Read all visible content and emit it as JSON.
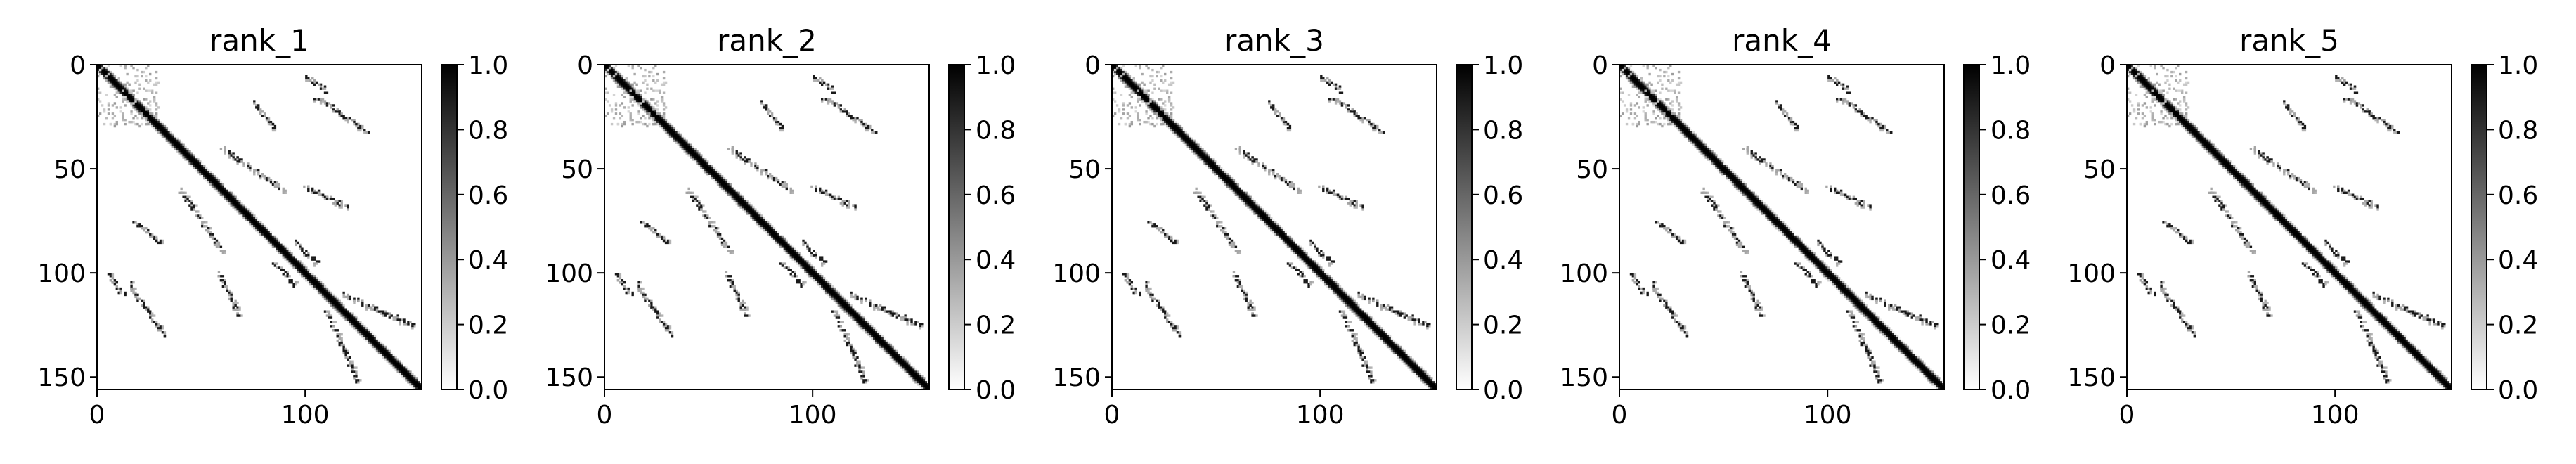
{
  "figure": {
    "background": "#ffffff",
    "cmap": "Greys (white to black)",
    "panel_count": 5
  },
  "chart_data": [
    {
      "type": "heatmap",
      "title": "rank_1",
      "xlabel": "",
      "ylabel": "",
      "matrix_size": 156,
      "xlim": [
        0,
        155
      ],
      "ylim": [
        155,
        0
      ],
      "x_ticks": [
        0,
        100
      ],
      "y_ticks": [
        0,
        50,
        100,
        150
      ],
      "colorbar": {
        "min": 0.0,
        "max": 1.0,
        "ticks": [
          "0.0",
          "0.2",
          "0.4",
          "0.6",
          "0.8",
          "1.0"
        ]
      },
      "features": {
        "diagonal_band_width": 3,
        "diagonal_range": [
          0,
          155
        ],
        "contact_arcs": [
          {
            "i_start": 18,
            "i_end": 30,
            "j_start": 75,
            "j_end": 85
          },
          {
            "i_start": 15,
            "i_end": 32,
            "j_start": 105,
            "j_end": 130
          },
          {
            "i_start": 40,
            "i_end": 60,
            "j_start": 60,
            "j_end": 90
          },
          {
            "i_start": 58,
            "i_end": 68,
            "j_start": 100,
            "j_end": 120
          },
          {
            "i_start": 5,
            "i_end": 12,
            "j_start": 100,
            "j_end": 110
          },
          {
            "i_start": 110,
            "i_end": 125,
            "j_start": 118,
            "j_end": 152
          },
          {
            "i_start": 85,
            "i_end": 95,
            "j_start": 95,
            "j_end": 105
          }
        ]
      }
    },
    {
      "type": "heatmap",
      "title": "rank_2",
      "xlabel": "",
      "ylabel": "",
      "matrix_size": 156,
      "xlim": [
        0,
        155
      ],
      "ylim": [
        155,
        0
      ],
      "x_ticks": [
        0,
        100
      ],
      "y_ticks": [
        0,
        50,
        100,
        150
      ],
      "colorbar": {
        "min": 0.0,
        "max": 1.0,
        "ticks": [
          "0.0",
          "0.2",
          "0.4",
          "0.6",
          "0.8",
          "1.0"
        ]
      },
      "features": {
        "diagonal_band_width": 3,
        "diagonal_range": [
          0,
          155
        ],
        "contact_arcs": [
          {
            "i_start": 18,
            "i_end": 30,
            "j_start": 75,
            "j_end": 85
          },
          {
            "i_start": 15,
            "i_end": 32,
            "j_start": 105,
            "j_end": 130
          },
          {
            "i_start": 40,
            "i_end": 60,
            "j_start": 60,
            "j_end": 90
          },
          {
            "i_start": 58,
            "i_end": 68,
            "j_start": 100,
            "j_end": 120
          },
          {
            "i_start": 5,
            "i_end": 12,
            "j_start": 100,
            "j_end": 110
          },
          {
            "i_start": 110,
            "i_end": 125,
            "j_start": 118,
            "j_end": 152
          },
          {
            "i_start": 85,
            "i_end": 95,
            "j_start": 95,
            "j_end": 105
          }
        ]
      }
    },
    {
      "type": "heatmap",
      "title": "rank_3",
      "xlabel": "",
      "ylabel": "",
      "matrix_size": 156,
      "xlim": [
        0,
        155
      ],
      "ylim": [
        155,
        0
      ],
      "x_ticks": [
        0,
        100
      ],
      "y_ticks": [
        0,
        50,
        100,
        150
      ],
      "colorbar": {
        "min": 0.0,
        "max": 1.0,
        "ticks": [
          "0.0",
          "0.2",
          "0.4",
          "0.6",
          "0.8",
          "1.0"
        ]
      },
      "features": {
        "diagonal_band_width": 3,
        "diagonal_range": [
          0,
          155
        ],
        "contact_arcs": [
          {
            "i_start": 18,
            "i_end": 30,
            "j_start": 75,
            "j_end": 85
          },
          {
            "i_start": 15,
            "i_end": 32,
            "j_start": 105,
            "j_end": 130
          },
          {
            "i_start": 40,
            "i_end": 60,
            "j_start": 60,
            "j_end": 90
          },
          {
            "i_start": 58,
            "i_end": 68,
            "j_start": 100,
            "j_end": 120
          },
          {
            "i_start": 5,
            "i_end": 12,
            "j_start": 100,
            "j_end": 110
          },
          {
            "i_start": 110,
            "i_end": 125,
            "j_start": 118,
            "j_end": 152
          },
          {
            "i_start": 85,
            "i_end": 95,
            "j_start": 95,
            "j_end": 105
          }
        ]
      }
    },
    {
      "type": "heatmap",
      "title": "rank_4",
      "xlabel": "",
      "ylabel": "",
      "matrix_size": 156,
      "xlim": [
        0,
        155
      ],
      "ylim": [
        155,
        0
      ],
      "x_ticks": [
        0,
        100
      ],
      "y_ticks": [
        0,
        50,
        100,
        150
      ],
      "colorbar": {
        "min": 0.0,
        "max": 1.0,
        "ticks": [
          "0.0",
          "0.2",
          "0.4",
          "0.6",
          "0.8",
          "1.0"
        ]
      },
      "features": {
        "diagonal_band_width": 3,
        "diagonal_range": [
          0,
          155
        ],
        "contact_arcs": [
          {
            "i_start": 18,
            "i_end": 30,
            "j_start": 75,
            "j_end": 85
          },
          {
            "i_start": 15,
            "i_end": 32,
            "j_start": 105,
            "j_end": 130
          },
          {
            "i_start": 40,
            "i_end": 60,
            "j_start": 60,
            "j_end": 90
          },
          {
            "i_start": 58,
            "i_end": 68,
            "j_start": 100,
            "j_end": 120
          },
          {
            "i_start": 5,
            "i_end": 12,
            "j_start": 100,
            "j_end": 110
          },
          {
            "i_start": 110,
            "i_end": 125,
            "j_start": 118,
            "j_end": 152
          },
          {
            "i_start": 85,
            "i_end": 95,
            "j_start": 95,
            "j_end": 105
          }
        ]
      }
    },
    {
      "type": "heatmap",
      "title": "rank_5",
      "xlabel": "",
      "ylabel": "",
      "matrix_size": 156,
      "xlim": [
        0,
        155
      ],
      "ylim": [
        155,
        0
      ],
      "x_ticks": [
        0,
        100
      ],
      "y_ticks": [
        0,
        50,
        100,
        150
      ],
      "colorbar": {
        "min": 0.0,
        "max": 1.0,
        "ticks": [
          "0.0",
          "0.2",
          "0.4",
          "0.6",
          "0.8",
          "1.0"
        ]
      },
      "features": {
        "diagonal_band_width": 3,
        "diagonal_range": [
          0,
          155
        ],
        "contact_arcs": [
          {
            "i_start": 18,
            "i_end": 30,
            "j_start": 75,
            "j_end": 85
          },
          {
            "i_start": 15,
            "i_end": 32,
            "j_start": 105,
            "j_end": 130
          },
          {
            "i_start": 40,
            "i_end": 60,
            "j_start": 60,
            "j_end": 90
          },
          {
            "i_start": 58,
            "i_end": 68,
            "j_start": 100,
            "j_end": 120
          },
          {
            "i_start": 5,
            "i_end": 12,
            "j_start": 100,
            "j_end": 110
          },
          {
            "i_start": 110,
            "i_end": 125,
            "j_start": 118,
            "j_end": 152
          },
          {
            "i_start": 85,
            "i_end": 95,
            "j_start": 95,
            "j_end": 105
          }
        ]
      }
    }
  ]
}
